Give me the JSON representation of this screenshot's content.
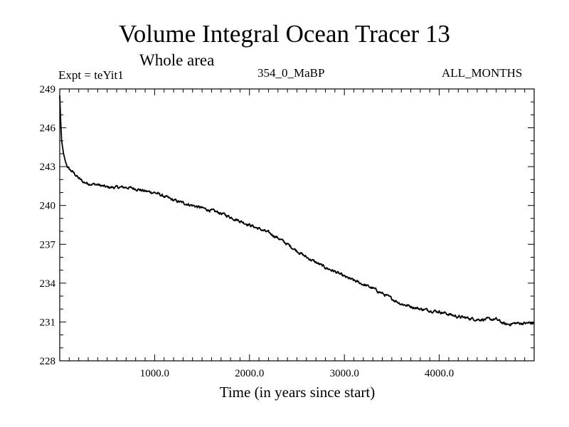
{
  "chart_data": {
    "type": "line",
    "title": "Volume Integral Ocean Tracer 13",
    "subtitle": "Whole area",
    "annotations": {
      "experiment": "Expt = teYit1",
      "run": "354_0_MaBP",
      "season": "ALL_MONTHS"
    },
    "xlabel": "Time (in years since start)",
    "ylabel": "",
    "xlim": [
      0,
      5000
    ],
    "ylim": [
      228,
      249
    ],
    "x_ticks": [
      1000,
      2000,
      3000,
      4000
    ],
    "x_tick_labels": [
      "1000.0",
      "2000.0",
      "3000.0",
      "4000.0"
    ],
    "y_ticks": [
      228,
      231,
      234,
      237,
      240,
      243,
      246,
      249
    ],
    "y_tick_labels": [
      "228",
      "231",
      "234",
      "237",
      "240",
      "243",
      "246",
      "249"
    ],
    "grid": false,
    "series": [
      {
        "name": "Tracer 13",
        "color": "#000000",
        "x": [
          0,
          10,
          20,
          40,
          60,
          80,
          100,
          150,
          200,
          250,
          300,
          400,
          500,
          600,
          700,
          800,
          900,
          1000,
          1100,
          1200,
          1300,
          1400,
          1500,
          1600,
          1700,
          1800,
          1900,
          2000,
          2100,
          2200,
          2300,
          2400,
          2500,
          2600,
          2700,
          2800,
          2900,
          3000,
          3100,
          3200,
          3300,
          3400,
          3500,
          3600,
          3700,
          3800,
          3900,
          4000,
          4100,
          4200,
          4300,
          4400,
          4500,
          4600,
          4700,
          4800,
          4900,
          5000
        ],
        "y": [
          248.5,
          246.5,
          245.0,
          244.0,
          243.4,
          243.0,
          242.8,
          242.5,
          242.1,
          241.8,
          241.7,
          241.6,
          241.4,
          241.4,
          241.4,
          241.3,
          241.1,
          241.0,
          240.7,
          240.4,
          240.2,
          240.0,
          239.8,
          239.6,
          239.4,
          239.1,
          238.8,
          238.5,
          238.2,
          237.9,
          237.5,
          237.0,
          236.5,
          236.0,
          235.6,
          235.2,
          234.9,
          234.5,
          234.2,
          233.9,
          233.6,
          233.2,
          232.8,
          232.4,
          232.2,
          232.0,
          231.9,
          231.8,
          231.6,
          231.4,
          231.3,
          231.2,
          231.2,
          231.2,
          230.8,
          230.9,
          230.9,
          230.9
        ]
      }
    ]
  }
}
